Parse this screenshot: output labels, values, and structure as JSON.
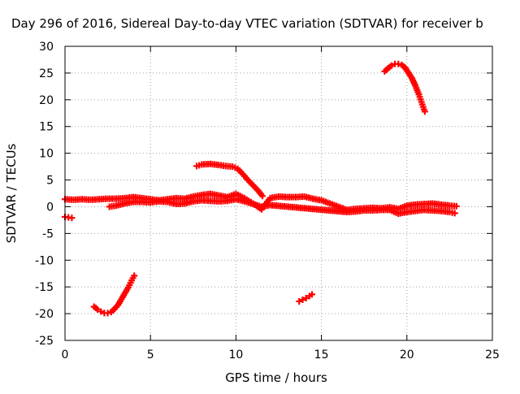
{
  "chart_data": {
    "type": "scatter",
    "title": "Day 296 of 2016, Sidereal Day-to-day VTEC variation (SDTVAR) for receiver b",
    "xlabel": "GPS time / hours",
    "ylabel": "SDTVAR / TECUs",
    "xlim": [
      0,
      25
    ],
    "ylim": [
      -25,
      30
    ],
    "xticks": [
      0,
      5,
      10,
      15,
      20,
      25
    ],
    "yticks": [
      -25,
      -20,
      -15,
      -10,
      -5,
      0,
      5,
      10,
      15,
      20,
      25,
      30
    ],
    "grid": true,
    "marker": "plus",
    "series": [
      {
        "name": "baseline-main",
        "color": "#ff0000",
        "points": [
          [
            0.0,
            1.4
          ],
          [
            0.5,
            1.3
          ],
          [
            1.0,
            1.4
          ],
          [
            1.5,
            1.3
          ],
          [
            2.0,
            1.4
          ],
          [
            2.5,
            1.5
          ],
          [
            3.0,
            1.5
          ],
          [
            3.5,
            1.6
          ],
          [
            4.0,
            1.8
          ],
          [
            4.5,
            1.6
          ],
          [
            5.0,
            1.4
          ],
          [
            5.5,
            1.2
          ],
          [
            6.0,
            1.4
          ],
          [
            6.5,
            1.6
          ],
          [
            7.0,
            1.5
          ],
          [
            7.5,
            1.9
          ],
          [
            8.0,
            2.2
          ],
          [
            8.5,
            2.4
          ],
          [
            9.0,
            2.1
          ],
          [
            9.5,
            1.8
          ],
          [
            10.0,
            2.4
          ],
          [
            10.5,
            1.6
          ],
          [
            11.0,
            0.6
          ],
          [
            11.5,
            -0.5
          ],
          [
            12.0,
            1.6
          ],
          [
            12.5,
            1.9
          ],
          [
            13.0,
            1.8
          ],
          [
            13.5,
            1.8
          ],
          [
            14.0,
            1.9
          ],
          [
            14.5,
            1.5
          ],
          [
            15.0,
            1.2
          ],
          [
            15.5,
            0.6
          ],
          [
            16.0,
            0.0
          ],
          [
            16.5,
            -0.6
          ],
          [
            17.0,
            -0.4
          ],
          [
            17.5,
            -0.3
          ],
          [
            18.0,
            -0.2
          ],
          [
            18.5,
            -0.3
          ],
          [
            19.0,
            -0.1
          ],
          [
            19.5,
            -0.4
          ],
          [
            20.0,
            0.2
          ],
          [
            20.5,
            0.4
          ],
          [
            21.0,
            0.5
          ],
          [
            21.5,
            0.6
          ],
          [
            22.0,
            0.4
          ],
          [
            22.5,
            0.2
          ],
          [
            22.9,
            0.1
          ]
        ]
      },
      {
        "name": "baseline-lower",
        "color": "#ff0000",
        "points": [
          [
            2.6,
            0.0
          ],
          [
            3.0,
            0.2
          ],
          [
            3.5,
            0.6
          ],
          [
            4.0,
            0.9
          ],
          [
            4.5,
            0.9
          ],
          [
            5.0,
            0.8
          ],
          [
            5.5,
            1.0
          ],
          [
            6.0,
            0.9
          ],
          [
            6.5,
            0.5
          ],
          [
            7.0,
            0.6
          ],
          [
            7.5,
            1.0
          ],
          [
            8.0,
            1.2
          ],
          [
            8.5,
            1.1
          ],
          [
            9.0,
            1.0
          ],
          [
            9.5,
            1.1
          ],
          [
            10.0,
            1.4
          ],
          [
            10.5,
            1.0
          ],
          [
            11.0,
            0.5
          ],
          [
            11.5,
            0.0
          ],
          [
            12.0,
            0.3
          ],
          [
            16.5,
            -1.0
          ],
          [
            17.0,
            -0.9
          ],
          [
            17.5,
            -0.7
          ],
          [
            18.0,
            -0.7
          ],
          [
            18.5,
            -0.6
          ],
          [
            19.0,
            -0.6
          ],
          [
            19.5,
            -1.3
          ],
          [
            20.0,
            -1.0
          ],
          [
            20.5,
            -0.8
          ],
          [
            21.0,
            -0.6
          ],
          [
            21.5,
            -0.7
          ],
          [
            22.0,
            -0.8
          ],
          [
            22.5,
            -1.0
          ],
          [
            22.8,
            -1.2
          ]
        ]
      },
      {
        "name": "arc-high-afternoon",
        "color": "#ff0000",
        "points": [
          [
            18.7,
            25.3
          ],
          [
            18.9,
            25.9
          ],
          [
            19.1,
            26.4
          ],
          [
            19.3,
            26.7
          ],
          [
            19.5,
            26.7
          ],
          [
            19.7,
            26.5
          ],
          [
            19.9,
            26.0
          ],
          [
            20.1,
            25.0
          ],
          [
            20.3,
            24.0
          ],
          [
            20.5,
            22.6
          ],
          [
            20.7,
            21.0
          ],
          [
            20.85,
            19.6
          ],
          [
            21.0,
            18.2
          ],
          [
            21.05,
            17.8
          ]
        ]
      },
      {
        "name": "arc-morning-positive",
        "color": "#ff0000",
        "points": [
          [
            7.7,
            7.6
          ],
          [
            8.0,
            7.9
          ],
          [
            8.5,
            8.0
          ],
          [
            9.0,
            7.8
          ],
          [
            9.4,
            7.6
          ],
          [
            9.8,
            7.5
          ],
          [
            10.1,
            7.1
          ],
          [
            10.4,
            6.1
          ],
          [
            10.7,
            5.0
          ],
          [
            11.0,
            4.0
          ],
          [
            11.3,
            3.0
          ],
          [
            11.55,
            2.0
          ]
        ]
      },
      {
        "name": "arc-early-negative",
        "color": "#ff0000",
        "points": [
          [
            1.7,
            -18.7
          ],
          [
            1.9,
            -19.2
          ],
          [
            2.1,
            -19.6
          ],
          [
            2.3,
            -19.9
          ],
          [
            2.5,
            -19.9
          ],
          [
            2.7,
            -19.7
          ],
          [
            2.9,
            -19.1
          ],
          [
            3.1,
            -18.4
          ],
          [
            3.3,
            -17.3
          ],
          [
            3.5,
            -16.2
          ],
          [
            3.7,
            -15.1
          ],
          [
            3.9,
            -13.8
          ],
          [
            4.05,
            -12.9
          ]
        ]
      },
      {
        "name": "segment-midday-negative",
        "color": "#ff0000",
        "points": [
          [
            13.7,
            -17.7
          ],
          [
            13.9,
            -17.4
          ],
          [
            14.1,
            -17.1
          ],
          [
            14.3,
            -16.7
          ],
          [
            14.45,
            -16.4
          ]
        ]
      },
      {
        "name": "segment-start-negative",
        "color": "#ff0000",
        "points": [
          [
            0.0,
            -1.9
          ],
          [
            0.2,
            -2.0
          ],
          [
            0.4,
            -2.1
          ]
        ]
      }
    ]
  }
}
